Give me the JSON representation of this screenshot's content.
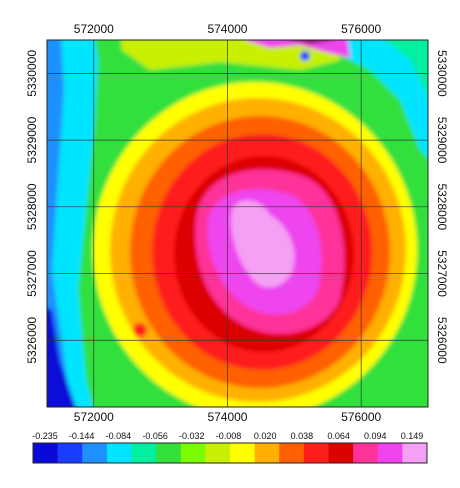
{
  "map": {
    "x_ticks": [
      "572000",
      "574000",
      "576000"
    ],
    "y_ticks": [
      "5330000",
      "5329000",
      "5328000",
      "5327000",
      "5326000"
    ],
    "x_range": [
      571300,
      577000
    ],
    "y_range": [
      5325000,
      5330500
    ],
    "x_tick_values": [
      572000,
      574000,
      576000
    ],
    "y_tick_values": [
      5330000,
      5329000,
      5328000,
      5327000,
      5326000
    ],
    "grid": true,
    "anomaly_center": [
      574600,
      5327600
    ],
    "colors": [
      "#0a0ad8",
      "#1a3cff",
      "#1e90ff",
      "#00e5ff",
      "#00f0a0",
      "#33e03c",
      "#7cfc00",
      "#c8f000",
      "#ffff00",
      "#ffb000",
      "#ff6000",
      "#ff1e1e",
      "#dd0000",
      "#ff3399",
      "#ee44ee",
      "#f4a0f4"
    ]
  },
  "colorbar": {
    "labels": [
      "-0.235",
      "-0.144",
      "-0.084",
      "-0.056",
      "-0.032",
      "-0.008",
      "0.020",
      "0.038",
      "0.064",
      "0.094",
      "0.149"
    ],
    "label_values": [
      -0.235,
      -0.144,
      -0.084,
      -0.056,
      -0.032,
      -0.008,
      0.02,
      0.038,
      0.064,
      0.094,
      0.149
    ]
  }
}
